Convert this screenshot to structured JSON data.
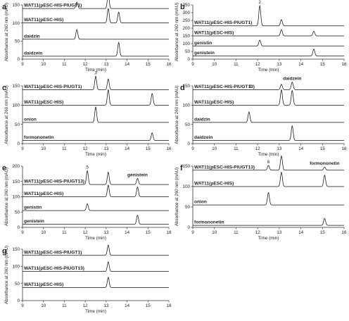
{
  "chart_data": [
    {
      "type": "line",
      "panel": "a",
      "xlabel": "Time (min)",
      "ylabel": "Absorbance at 260 nm (mAU)",
      "xlim": [
        9,
        16
      ],
      "ylim": [
        0,
        150
      ],
      "x_ticks": [
        "9",
        "10",
        "11",
        "12",
        "13",
        "14",
        "15",
        "16"
      ],
      "y_ticks": [
        "0",
        "50",
        "100",
        "150"
      ],
      "series": [
        {
          "name": "WAT11(pESC-HIS-PIUGT1)",
          "baseline": 140,
          "peaks": [
            {
              "x": 11.6,
              "h": 18
            },
            {
              "x": 13.1,
              "h": 40
            }
          ]
        },
        {
          "name": "WAT11(pESC-HIS)",
          "baseline": 100,
          "peaks": [
            {
              "x": 13.1,
              "h": 40
            },
            {
              "x": 13.6,
              "h": 30
            }
          ]
        },
        {
          "name": "daidzin",
          "baseline": 55,
          "peaks": [
            {
              "x": 11.6,
              "h": 27
            }
          ]
        },
        {
          "name": "daidzein",
          "baseline": 8,
          "peaks": [
            {
              "x": 13.6,
              "h": 38
            }
          ]
        }
      ],
      "annotations": [
        {
          "text": "1",
          "x": 11.6,
          "series": 0
        }
      ]
    },
    {
      "type": "line",
      "panel": "b",
      "xlabel": "Time (min)",
      "ylabel": "Absorbance at 260 nm (mAU)",
      "xlim": [
        9,
        16
      ],
      "ylim": [
        0,
        350
      ],
      "x_ticks": [
        "9",
        "10",
        "11",
        "12",
        "13",
        "14",
        "15",
        "16"
      ],
      "y_ticks": [
        "0",
        "50",
        "100",
        "150",
        "200",
        "250",
        "300",
        "350"
      ],
      "series": [
        {
          "name": "WAT11(pESC-HIS-PIUGT1)",
          "baseline": 215,
          "peaks": [
            {
              "x": 12.1,
              "h": 130
            },
            {
              "x": 13.1,
              "h": 40
            }
          ]
        },
        {
          "name": "WAT11(pESC-HIS)",
          "baseline": 150,
          "peaks": [
            {
              "x": 13.1,
              "h": 40
            },
            {
              "x": 14.6,
              "h": 30
            }
          ]
        },
        {
          "name": "genistin",
          "baseline": 85,
          "peaks": [
            {
              "x": 12.1,
              "h": 38
            }
          ]
        },
        {
          "name": "genistein",
          "baseline": 20,
          "peaks": [
            {
              "x": 14.6,
              "h": 45
            }
          ]
        }
      ],
      "annotations": [
        {
          "text": "2",
          "x": 12.1,
          "series": 0
        }
      ]
    },
    {
      "type": "line",
      "panel": "c",
      "xlabel": "Time (min)",
      "ylabel": "Absorbance at 260 nm (mAU)",
      "xlim": [
        9,
        16
      ],
      "ylim": [
        0,
        150
      ],
      "x_ticks": [
        "9",
        "10",
        "11",
        "12",
        "13",
        "14",
        "15",
        "16"
      ],
      "y_ticks": [
        "0",
        "50",
        "100",
        "150"
      ],
      "series": [
        {
          "name": "WAT11(pESC-HIS-PIUGT1)",
          "baseline": 140,
          "peaks": [
            {
              "x": 12.5,
              "h": 35
            },
            {
              "x": 13.1,
              "h": 28
            }
          ]
        },
        {
          "name": "WAT11(pESC-HIS)",
          "baseline": 100,
          "peaks": [
            {
              "x": 13.1,
              "h": 40
            },
            {
              "x": 15.2,
              "h": 30
            }
          ]
        },
        {
          "name": "onion",
          "baseline": 55,
          "peaks": [
            {
              "x": 12.5,
              "h": 40
            }
          ]
        },
        {
          "name": "formononetin",
          "baseline": 8,
          "peaks": [
            {
              "x": 15.2,
              "h": 20
            }
          ]
        }
      ],
      "annotations": [
        {
          "text": "3",
          "x": 12.5,
          "series": 0
        }
      ]
    },
    {
      "type": "line",
      "panel": "d",
      "xlabel": "Time (min)",
      "ylabel": "Absorbance at 260 nm (mAU)",
      "xlim": [
        9,
        16
      ],
      "ylim": [
        0,
        150
      ],
      "x_ticks": [
        "9",
        "10",
        "11",
        "12",
        "13",
        "14",
        "15",
        "16"
      ],
      "y_ticks": [
        "0",
        "50",
        "100",
        "150"
      ],
      "series": [
        {
          "name": "WAT11(pESC-HIS-PIUGT13)",
          "baseline": 140,
          "peaks": [
            {
              "x": 13.1,
              "h": 14
            },
            {
              "x": 13.6,
              "h": 20
            }
          ]
        },
        {
          "name": "WAT11(pESC-HIS)",
          "baseline": 100,
          "peaks": [
            {
              "x": 13.1,
              "h": 40
            },
            {
              "x": 13.6,
              "h": 38
            }
          ]
        },
        {
          "name": "daidzin",
          "baseline": 55,
          "peaks": [
            {
              "x": 11.6,
              "h": 27
            }
          ]
        },
        {
          "name": "daidzein",
          "baseline": 8,
          "peaks": [
            {
              "x": 13.6,
              "h": 38
            }
          ]
        }
      ],
      "annotations": [
        {
          "text": "4",
          "x": 11.65,
          "series": 0
        },
        {
          "text": "daidzein",
          "x": 13.6,
          "series": 0
        }
      ]
    },
    {
      "type": "line",
      "panel": "e",
      "xlabel": "Time (min)",
      "ylabel": "Absorbance at 260 nm (mAU)",
      "xlim": [
        9,
        16
      ],
      "ylim": [
        0,
        200
      ],
      "x_ticks": [
        "9",
        "10",
        "11",
        "12",
        "13",
        "14",
        "15",
        "16"
      ],
      "y_ticks": [
        "0",
        "50",
        "100",
        "150",
        "200"
      ],
      "series": [
        {
          "name": "WAT11(pESC-HIS-PIUGT13)",
          "baseline": 140,
          "peaks": [
            {
              "x": 12.1,
              "h": 45
            },
            {
              "x": 13.1,
              "h": 40
            },
            {
              "x": 14.5,
              "h": 20
            }
          ]
        },
        {
          "name": "WAT11(pESC-HIS)",
          "baseline": 100,
          "peaks": [
            {
              "x": 13.1,
              "h": 38
            },
            {
              "x": 14.5,
              "h": 32
            }
          ]
        },
        {
          "name": "genistin",
          "baseline": 55,
          "peaks": [
            {
              "x": 12.1,
              "h": 22
            }
          ]
        },
        {
          "name": "genistein",
          "baseline": 10,
          "peaks": [
            {
              "x": 14.5,
              "h": 30
            }
          ]
        }
      ],
      "annotations": [
        {
          "text": "5",
          "x": 12.1,
          "series": 0
        },
        {
          "text": "genistein",
          "x": 14.5,
          "series": 0
        }
      ]
    },
    {
      "type": "line",
      "panel": "f",
      "xlabel": "Time (min)",
      "ylabel": "Absorbance at 260 nm (mAU)",
      "xlim": [
        9,
        16
      ],
      "ylim": [
        0,
        150
      ],
      "x_ticks": [
        "9",
        "10",
        "11",
        "12",
        "13",
        "14",
        "15",
        "16"
      ],
      "y_ticks": [
        "0",
        "50",
        "100",
        "150"
      ],
      "series": [
        {
          "name": "WAT11(pESC-HIS-PIUGT13)",
          "baseline": 140,
          "peaks": [
            {
              "x": 12.5,
              "h": 12
            },
            {
              "x": 13.1,
              "h": 35
            },
            {
              "x": 15.1,
              "h": 8
            }
          ]
        },
        {
          "name": "WAT11(pESC-HIS)",
          "baseline": 100,
          "peaks": [
            {
              "x": 13.1,
              "h": 35
            },
            {
              "x": 15.1,
              "h": 28
            }
          ]
        },
        {
          "name": "onion",
          "baseline": 55,
          "peaks": [
            {
              "x": 12.5,
              "h": 30
            }
          ]
        },
        {
          "name": "formononetin",
          "baseline": 5,
          "peaks": [
            {
              "x": 15.1,
              "h": 17
            }
          ]
        }
      ],
      "annotations": [
        {
          "text": "6",
          "x": 12.5,
          "series": 0
        },
        {
          "text": "formononetin",
          "x": 15.1,
          "series": 0
        }
      ]
    },
    {
      "type": "line",
      "panel": "g",
      "xlabel": "Time (min)",
      "ylabel": "Absorbance at 260 nm (mAU)",
      "xlim": [
        9,
        16
      ],
      "ylim": [
        0,
        150
      ],
      "x_ticks": [
        "9",
        "10",
        "11",
        "12",
        "13",
        "14",
        "15",
        "16"
      ],
      "y_ticks": [
        "0",
        "50",
        "100",
        "150"
      ],
      "series": [
        {
          "name": "WAT11(pESC-HIS-PIUGT1)",
          "baseline": 132,
          "peaks": [
            {
              "x": 13.1,
              "h": 30
            }
          ]
        },
        {
          "name": "WAT11(pESC-HIS-PIUGT13)",
          "baseline": 85,
          "peaks": [
            {
              "x": 13.1,
              "h": 28
            }
          ]
        },
        {
          "name": "WAT11(pESC-HIS)",
          "baseline": 38,
          "peaks": [
            {
              "x": 13.1,
              "h": 30
            }
          ]
        }
      ],
      "annotations": []
    }
  ]
}
